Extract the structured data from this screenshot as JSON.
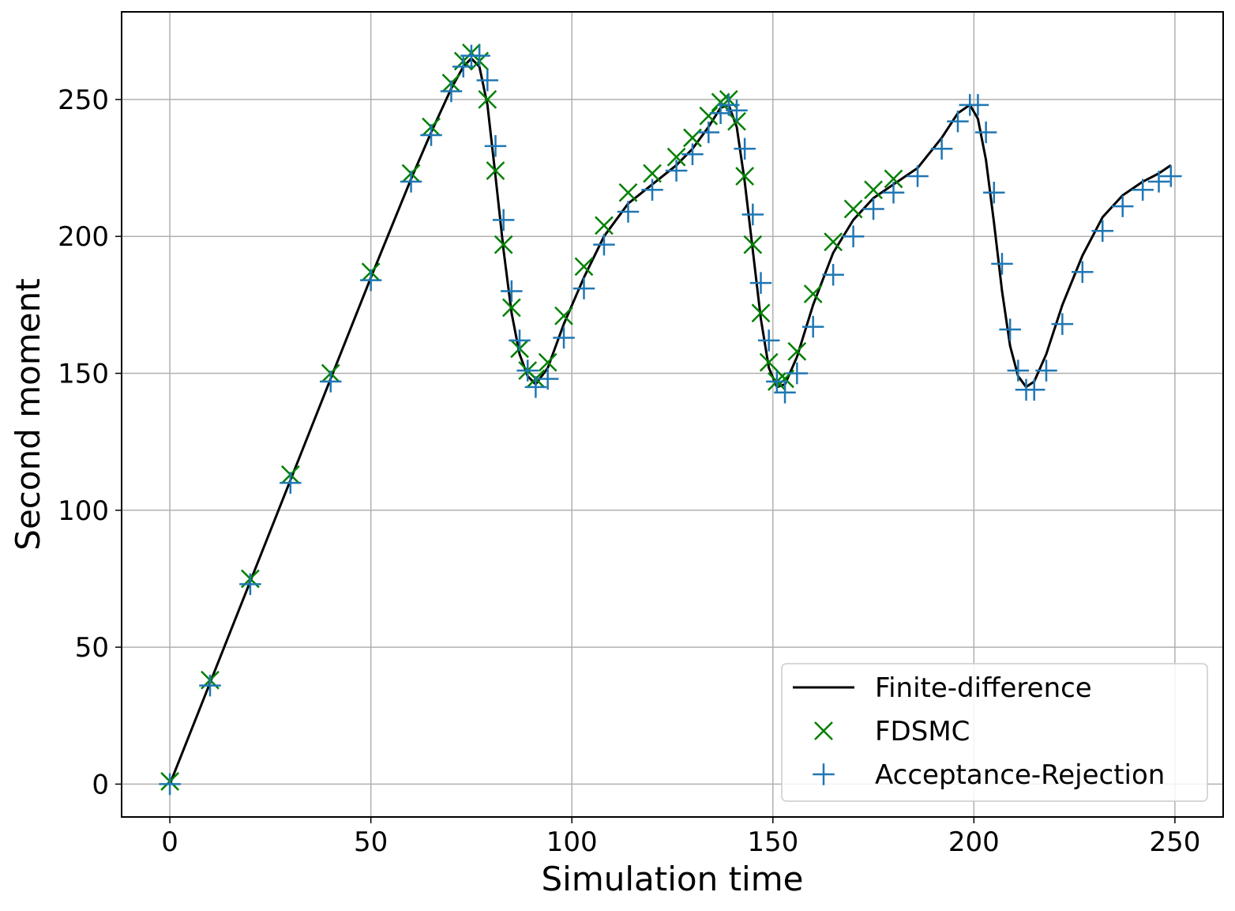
{
  "chart_data": {
    "type": "scatter",
    "title": "",
    "xlabel": "Simulation time",
    "ylabel": "Second moment",
    "xlim": [
      -12,
      262
    ],
    "ylim": [
      -12,
      282
    ],
    "xticks": [
      0,
      50,
      100,
      150,
      200,
      250
    ],
    "yticks": [
      0,
      50,
      100,
      150,
      200,
      250
    ],
    "xtick_labels": [
      "0",
      "50",
      "100",
      "150",
      "200",
      "250"
    ],
    "ytick_labels": [
      "0",
      "50",
      "100",
      "150",
      "200",
      "250"
    ],
    "grid": true,
    "legend_position": "lower-right",
    "series": [
      {
        "name": "Finite-difference",
        "kind": "line",
        "color": "#000000",
        "x": [
          0,
          10,
          20,
          30,
          40,
          50,
          60,
          65,
          70,
          73,
          75,
          77,
          79,
          81,
          83,
          85,
          87,
          89,
          91,
          94,
          98,
          103,
          108,
          114,
          120,
          126,
          130,
          134,
          137,
          139,
          141,
          143,
          145,
          147,
          149,
          151,
          153,
          156,
          160,
          165,
          170,
          175,
          180,
          186,
          192,
          196,
          199,
          201,
          203,
          205,
          207,
          209,
          211,
          213,
          215,
          218,
          222,
          227,
          232,
          237,
          242,
          246,
          249
        ],
        "y": [
          0,
          37,
          74,
          111,
          148,
          185,
          221,
          238,
          254,
          262,
          265,
          262,
          248,
          222,
          195,
          172,
          157,
          149,
          146,
          152,
          168,
          185,
          200,
          212,
          219,
          226,
          232,
          240,
          247,
          248,
          240,
          220,
          195,
          170,
          152,
          145,
          146,
          156,
          175,
          194,
          206,
          214,
          219,
          225,
          236,
          245,
          248,
          243,
          228,
          205,
          180,
          160,
          149,
          145,
          147,
          157,
          175,
          193,
          207,
          215,
          220,
          223,
          226
        ]
      },
      {
        "name": "FDSMC",
        "kind": "marker",
        "marker": "x",
        "color": "#008000",
        "x": [
          0,
          10,
          20,
          30,
          40,
          50,
          60,
          65,
          70,
          73,
          75,
          77,
          79,
          81,
          83,
          85,
          87,
          89,
          91,
          94,
          98,
          103,
          108,
          114,
          120,
          126,
          130,
          134,
          137,
          139,
          141,
          143,
          145,
          147,
          149,
          151,
          153,
          156,
          160,
          165,
          170,
          175,
          180
        ],
        "y": [
          1,
          38,
          75,
          113,
          150,
          187,
          223,
          240,
          256,
          264,
          267,
          264,
          250,
          224,
          197,
          174,
          159,
          151,
          148,
          154,
          171,
          189,
          204,
          216,
          223,
          229,
          236,
          244,
          249,
          250,
          242,
          222,
          197,
          172,
          154,
          147,
          148,
          158,
          179,
          198,
          210,
          217,
          221
        ]
      },
      {
        "name": "Acceptance-Rejection",
        "kind": "marker",
        "marker": "+",
        "color": "#1f77b4",
        "x": [
          0,
          10,
          20,
          30,
          40,
          50,
          60,
          65,
          70,
          73,
          75,
          77,
          79,
          81,
          83,
          85,
          87,
          89,
          91,
          94,
          98,
          103,
          108,
          114,
          120,
          126,
          130,
          134,
          137,
          139,
          141,
          143,
          145,
          147,
          149,
          151,
          153,
          156,
          160,
          165,
          170,
          175,
          180,
          186,
          192,
          196,
          199,
          201,
          203,
          205,
          207,
          209,
          211,
          213,
          215,
          218,
          222,
          227,
          232,
          237,
          242,
          246,
          249
        ],
        "y": [
          0,
          36,
          73,
          110,
          147,
          184,
          220,
          237,
          253,
          262,
          266,
          266,
          257,
          233,
          206,
          180,
          162,
          151,
          145,
          148,
          163,
          181,
          197,
          209,
          217,
          224,
          230,
          238,
          245,
          248,
          246,
          232,
          208,
          183,
          162,
          147,
          143,
          150,
          167,
          186,
          200,
          210,
          216,
          222,
          232,
          242,
          248,
          248,
          238,
          216,
          190,
          166,
          151,
          144,
          144,
          151,
          168,
          187,
          202,
          211,
          217,
          220,
          222
        ]
      }
    ]
  }
}
